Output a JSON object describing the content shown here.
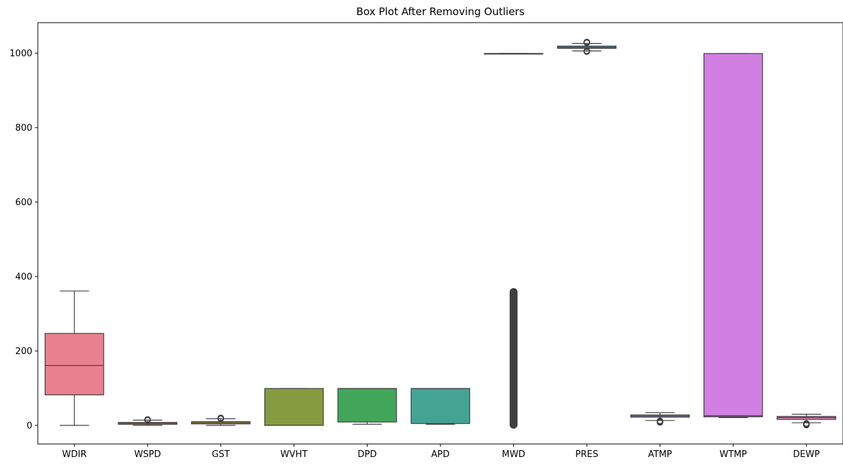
{
  "chart_data": {
    "type": "box",
    "title": "Box Plot After Removing Outliers",
    "xlabel": "",
    "ylabel": "",
    "ylim": [
      -50,
      1082
    ],
    "yticks": [
      0,
      200,
      400,
      600,
      800,
      1000
    ],
    "grid": false,
    "categories": [
      "WDIR",
      "WSPD",
      "GST",
      "WVHT",
      "DPD",
      "APD",
      "MWD",
      "PRES",
      "ATMP",
      "WTMP",
      "DEWP"
    ],
    "boxes": [
      {
        "name": "WDIR",
        "whisker_low": 0,
        "q1": 82,
        "median": 161,
        "q3": 247,
        "whisker_high": 361,
        "outliers": [],
        "color": "#e8808f"
      },
      {
        "name": "WSPD",
        "whisker_low": 0,
        "q1": 3,
        "median": 5,
        "q3": 8,
        "whisker_high": 14,
        "outliers": [
          14,
          15,
          16
        ],
        "color": "#d9905a"
      },
      {
        "name": "GST",
        "whisker_low": 0,
        "q1": 4,
        "median": 7,
        "q3": 10,
        "whisker_high": 18,
        "outliers": [
          18,
          19,
          20
        ],
        "color": "#b49a3e"
      },
      {
        "name": "WVHT",
        "whisker_low": 0,
        "q1": 0,
        "median": 0,
        "q3": 99,
        "whisker_high": 99,
        "outliers": [],
        "color": "#869a3f"
      },
      {
        "name": "DPD",
        "whisker_low": 3,
        "q1": 9,
        "median": 99,
        "q3": 99,
        "whisker_high": 99,
        "outliers": [],
        "color": "#41a65a"
      },
      {
        "name": "APD",
        "whisker_low": 3,
        "q1": 5,
        "median": 99,
        "q3": 99,
        "whisker_high": 99,
        "outliers": [],
        "color": "#43a494"
      },
      {
        "name": "MWD",
        "whisker_low": 999,
        "q1": 999,
        "median": 999,
        "q3": 999,
        "whisker_high": 999,
        "outliers_range": [
          0,
          360
        ],
        "outliers": [],
        "color": "#44a4b8"
      },
      {
        "name": "PRES",
        "whisker_low": 1006,
        "q1": 1013,
        "median": 1016,
        "q3": 1019,
        "whisker_high": 1026,
        "outliers": [
          1004,
          1006,
          1028,
          1030
        ],
        "color": "#4aa0cf"
      },
      {
        "name": "ATMP",
        "whisker_low": 13,
        "q1": 22,
        "median": 25,
        "q3": 28,
        "whisker_high": 34,
        "outliers": [
          8,
          10,
          12
        ],
        "color": "#9a9ae3"
      },
      {
        "name": "WTMP",
        "whisker_low": 21,
        "q1": 23,
        "median": 26,
        "q3": 999,
        "whisker_high": 999,
        "outliers": [],
        "color": "#d17fe3"
      },
      {
        "name": "DEWP",
        "whisker_low": 7,
        "q1": 16,
        "median": 21,
        "q3": 24,
        "whisker_high": 30,
        "outliers": [
          1,
          3,
          5
        ],
        "color": "#e882be"
      }
    ]
  }
}
